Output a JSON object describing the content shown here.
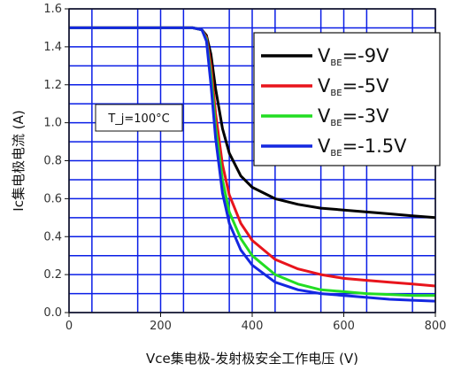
{
  "chart_data": {
    "type": "line",
    "xlabel": "Vce集电极-发射极安全工作电压 (V)",
    "ylabel": "Ic集电极电流 (A)",
    "xlim": [
      0,
      800
    ],
    "ylim": [
      0,
      1.6
    ],
    "xticks": [
      "0",
      "200",
      "400",
      "600",
      "800"
    ],
    "yticks": [
      "0.0",
      "0.2",
      "0.4",
      "0.6",
      "0.8",
      "1.0",
      "1.2",
      "1.4",
      "1.6"
    ],
    "grid": true,
    "legend_position": "top-right",
    "annotation": "T_j=100°C",
    "series": [
      {
        "name": "V_BE=-9V",
        "label_main": "V",
        "label_sub": "BE",
        "label_value": "=-9V",
        "color": "#000000",
        "x": [
          0,
          270,
          290,
          300,
          310,
          320,
          335,
          350,
          375,
          400,
          450,
          500,
          550,
          600,
          650,
          700,
          750,
          800
        ],
        "y": [
          1.5,
          1.5,
          1.49,
          1.46,
          1.36,
          1.18,
          0.97,
          0.84,
          0.72,
          0.66,
          0.6,
          0.57,
          0.55,
          0.54,
          0.53,
          0.52,
          0.51,
          0.5
        ]
      },
      {
        "name": "V_BE=-5V",
        "label_main": "V",
        "label_sub": "BE",
        "label_value": "=-5V",
        "color": "#e8141c",
        "x": [
          0,
          270,
          290,
          300,
          310,
          320,
          335,
          350,
          375,
          400,
          450,
          500,
          550,
          600,
          650,
          700,
          750,
          800
        ],
        "y": [
          1.5,
          1.5,
          1.49,
          1.45,
          1.3,
          1.05,
          0.78,
          0.62,
          0.47,
          0.38,
          0.28,
          0.23,
          0.2,
          0.18,
          0.17,
          0.16,
          0.15,
          0.14
        ]
      },
      {
        "name": "V_BE=-3V",
        "label_main": "V",
        "label_sub": "BE",
        "label_value": "=-3V",
        "color": "#22dd22",
        "x": [
          0,
          270,
          290,
          300,
          310,
          320,
          335,
          350,
          375,
          400,
          450,
          500,
          550,
          600,
          650,
          700,
          750,
          800
        ],
        "y": [
          1.5,
          1.5,
          1.49,
          1.44,
          1.25,
          0.98,
          0.7,
          0.53,
          0.39,
          0.3,
          0.2,
          0.15,
          0.12,
          0.11,
          0.1,
          0.095,
          0.09,
          0.09
        ]
      },
      {
        "name": "V_BE=-1.5V",
        "label_main": "V",
        "label_sub": "BE",
        "label_value": "=-1.5V",
        "color": "#1428e0",
        "x": [
          0,
          270,
          290,
          300,
          310,
          320,
          335,
          350,
          375,
          400,
          450,
          500,
          550,
          600,
          650,
          700,
          750,
          800
        ],
        "y": [
          1.5,
          1.5,
          1.49,
          1.43,
          1.2,
          0.92,
          0.63,
          0.47,
          0.33,
          0.25,
          0.16,
          0.12,
          0.1,
          0.09,
          0.08,
          0.07,
          0.065,
          0.06
        ]
      }
    ],
    "colors": {
      "grid": "#0a1ee6",
      "axis": "#111111",
      "background": "#ffffff"
    }
  }
}
